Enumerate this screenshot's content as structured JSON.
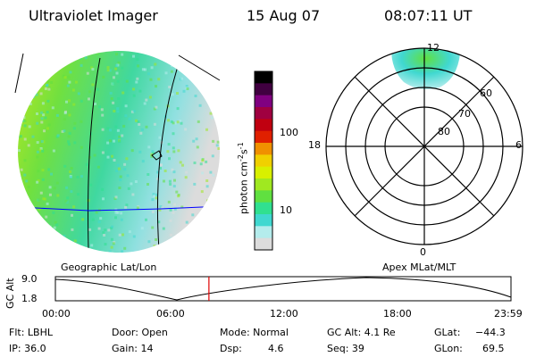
{
  "header": {
    "instrument": "Ultraviolet Imager",
    "date": "15 Aug 07",
    "time": "08:07:11 UT"
  },
  "colorbar": {
    "unit_label": "photon cm",
    "unit_exp1": "-2",
    "unit_mid": "s",
    "unit_exp2": "-1",
    "ticks": [
      {
        "label": "100",
        "value": 100
      },
      {
        "label": "10",
        "value": 10
      }
    ],
    "colors": [
      "#dcdcdc",
      "#b4ecec",
      "#40d8d0",
      "#30e090",
      "#60e040",
      "#a0e820",
      "#d8f000",
      "#f0d000",
      "#f09000",
      "#e02000",
      "#c00010",
      "#a00040",
      "#800080",
      "#400040",
      "#000000"
    ]
  },
  "polar_plot": {
    "mlt_labels": [
      {
        "label": "12",
        "angle_deg": 0
      },
      {
        "label": "18",
        "angle_deg": 270
      },
      {
        "label": "6",
        "angle_deg": 90
      },
      {
        "label": "0",
        "angle_deg": 180
      }
    ],
    "mlat_labels": [
      "60",
      "70",
      "80"
    ],
    "caption": "Apex MLat/MLT"
  },
  "earth_view": {
    "caption": "Geographic Lat/Lon"
  },
  "altitude_plot": {
    "ylabel": "GC Alt",
    "ymax_label": "9.0",
    "ymin_label": "1.8",
    "xticks": [
      "00:00",
      "06:00",
      "12:00",
      "18:00",
      "23:59"
    ],
    "current_time_fraction": 0.337
  },
  "status": {
    "flt": "Flt: LBHL",
    "ip": "IP: 36.0",
    "door": "Door: Open",
    "gain": "Gain: 14",
    "mode": "Mode: Normal",
    "dsp_label": "Dsp:",
    "dsp_value": "4.6",
    "gc_alt": "GC Alt: 4.1 Re",
    "seq": "Seq: 39",
    "glat_label": "GLat:",
    "glat_value": "−44.3",
    "glon_label": "GLon:",
    "glon_value": "69.5"
  }
}
